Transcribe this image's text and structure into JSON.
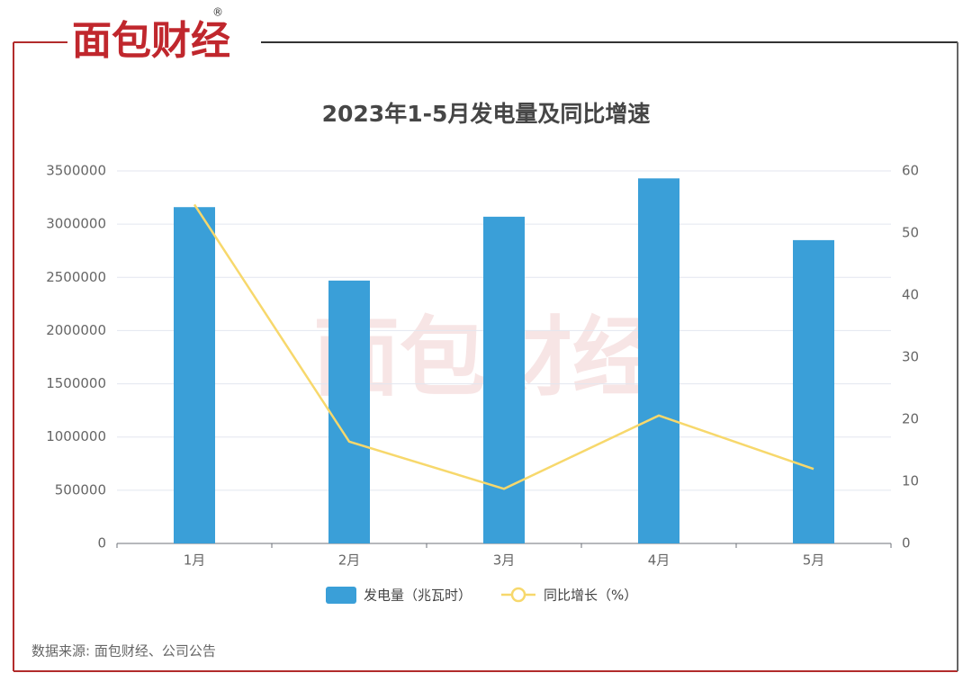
{
  "header": {
    "logo": "面包财经",
    "registered": "®"
  },
  "chart_data": {
    "type": "bar",
    "title": "2023年1-5月发电量及同比增速",
    "categories": [
      "1月",
      "2月",
      "3月",
      "4月",
      "5月"
    ],
    "series": [
      {
        "name": "发电量（兆瓦时）",
        "color": "#3a9fd8",
        "type": "bar",
        "values": [
          3160000,
          2470000,
          3070000,
          3430000,
          2850000
        ]
      },
      {
        "name": "同比增长（%）",
        "color": "#f7d86c",
        "type": "line",
        "axis": "y2",
        "values": [
          54.6,
          16.4,
          8.8,
          20.6,
          12.0
        ]
      }
    ],
    "ylim": [
      0,
      3500000
    ],
    "yticks": [
      0,
      500000,
      1000000,
      1500000,
      2000000,
      2500000,
      3000000,
      3500000
    ],
    "y2lim": [
      0,
      60
    ],
    "y2ticks": [
      0,
      10,
      20,
      30,
      40,
      50,
      60
    ],
    "grid": true,
    "legend": "bottom",
    "source": "数据来源: 面包财经、公司公告"
  }
}
